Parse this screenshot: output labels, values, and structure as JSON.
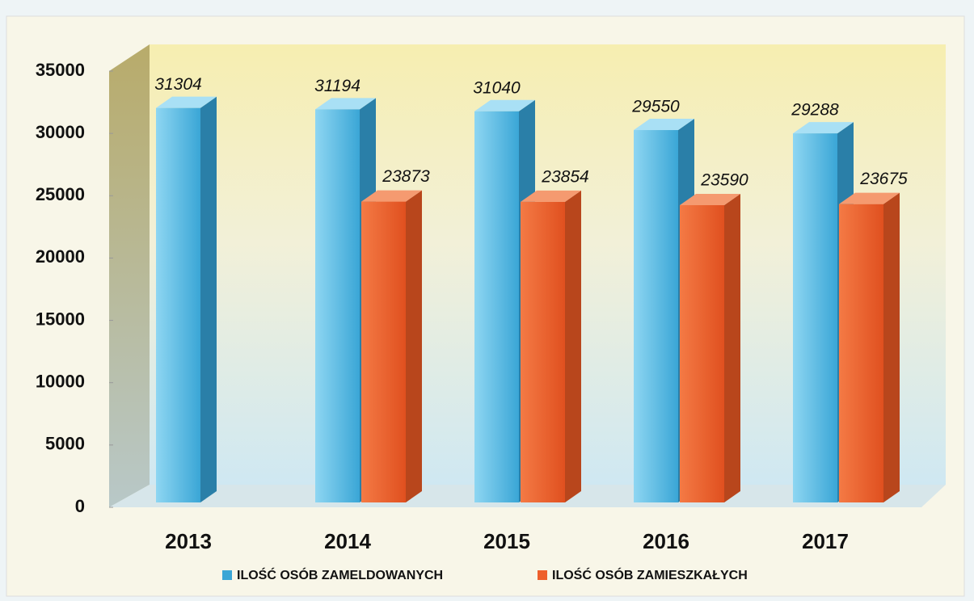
{
  "chart_data": {
    "type": "bar3d",
    "categories": [
      "2013",
      "2014",
      "2015",
      "2016",
      "2017"
    ],
    "series": [
      {
        "name": "ILOŚĆ OSÓB ZAMELDOWANYCH",
        "color": "#3aa6d6",
        "values": [
          31304,
          31194,
          31040,
          29550,
          29288
        ]
      },
      {
        "name": "ILOŚĆ OSÓB ZAMIESZKAŁYCH",
        "color": "#ee5f2c",
        "values": [
          null,
          23873,
          23854,
          23590,
          23675
        ]
      }
    ],
    "ylim": [
      0,
      35000
    ],
    "yticks": [
      0,
      5000,
      10000,
      15000,
      20000,
      25000,
      30000,
      35000
    ]
  }
}
